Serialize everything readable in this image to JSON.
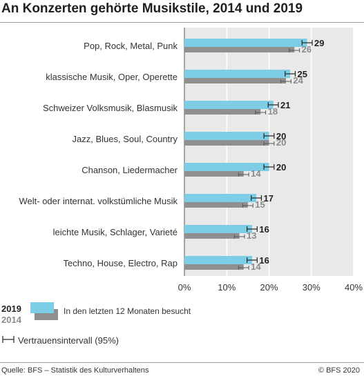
{
  "title": "An Konzerten gehörte Musikstile, 2014 und 2019",
  "legend": {
    "year_2019": "2019",
    "year_2014": "2014",
    "visited_text": "In den letzten 12 Monaten besucht",
    "ci_text": "Vertrauensintervall (95%)"
  },
  "footer": {
    "source": "Quelle: BFS – Statistik des Kulturverhaltens",
    "copyright": "© BFS 2020"
  },
  "colors": {
    "series_2019": "#7dcde6",
    "series_2014": "#8f8f8f",
    "label_2019": "#222222",
    "label_2014": "#8a8a8a",
    "plot_bg": "#e9e9e9",
    "grid": "#ffffff",
    "axis_line": "#555555"
  },
  "chart_data": {
    "type": "bar",
    "orientation": "horizontal",
    "categories": [
      "Pop, Rock, Metal, Punk",
      "klassische Musik, Oper, Operette",
      "Schweizer Volksmusik, Blasmusik",
      "Jazz, Blues, Soul, Country",
      "Chanson, Liedermacher",
      "Welt- oder internat. volkstümliche Musik",
      "leichte Musik, Schlager, Varieté",
      "Techno, House, Electro, Rap"
    ],
    "series": [
      {
        "name": "2019",
        "values": [
          29,
          25,
          21,
          20,
          20,
          17,
          16,
          16
        ]
      },
      {
        "name": "2014",
        "values": [
          26,
          24,
          18,
          20,
          14,
          15,
          13,
          14
        ]
      }
    ],
    "x_ticks": [
      "0%",
      "10%",
      "20%",
      "30%",
      "40%"
    ],
    "xlim": [
      0,
      40
    ],
    "unit": "%",
    "confidence_interval": "95%",
    "grid": true
  }
}
